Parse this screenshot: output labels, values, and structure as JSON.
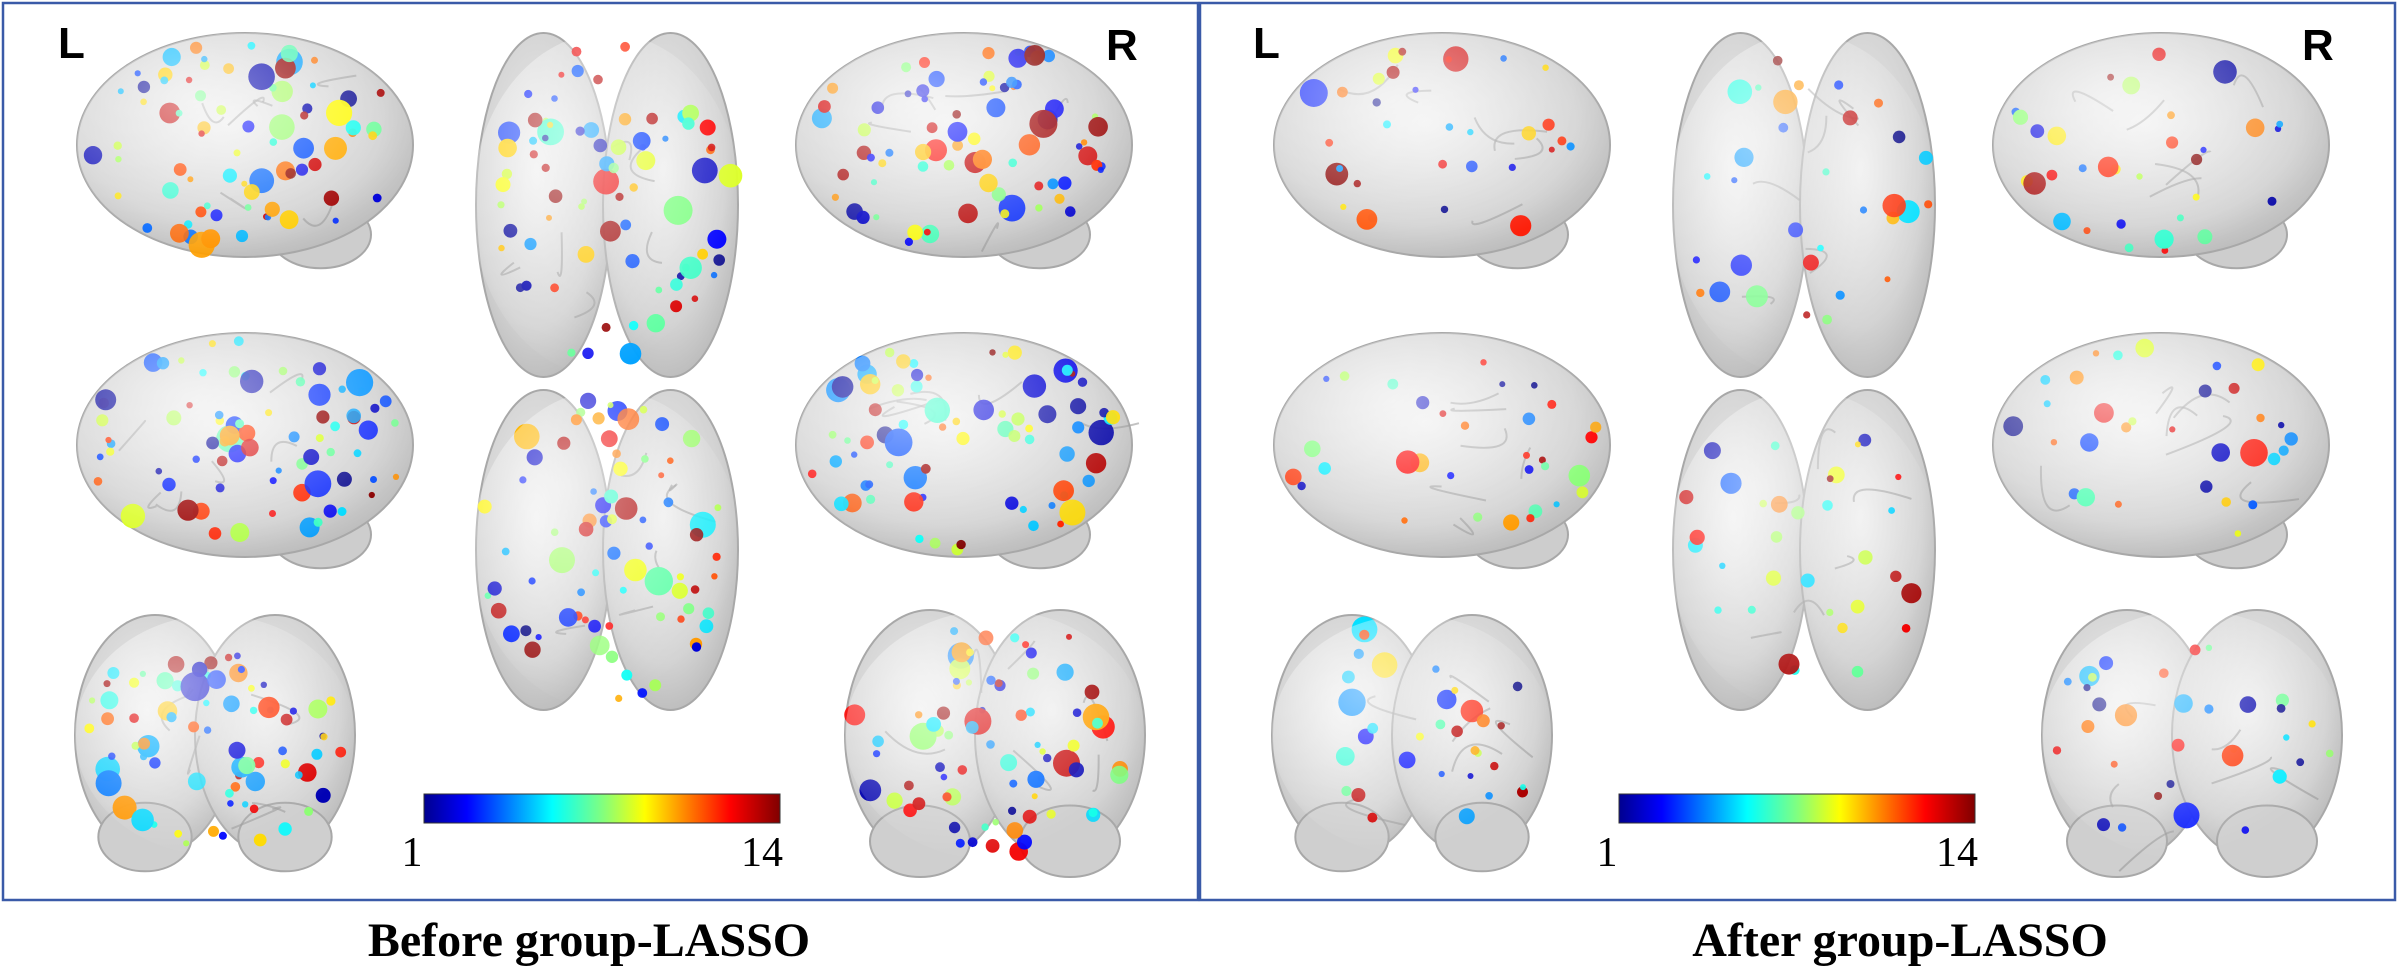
{
  "panels": [
    {
      "left_label": "L",
      "right_label": "R",
      "colorbar": {
        "min": 1,
        "max": 14
      },
      "caption": "Before group-LASSO"
    },
    {
      "left_label": "L",
      "right_label": "R",
      "colorbar": {
        "min": 1,
        "max": 14
      },
      "caption": "After group-LASSO"
    }
  ]
}
